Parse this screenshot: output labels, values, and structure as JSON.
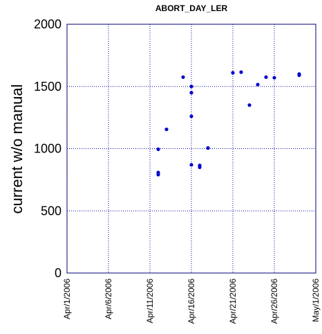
{
  "chart_data": {
    "type": "scatter",
    "title": "ABORT_DAY_LER",
    "y_label": "current w/o manual",
    "color": "#0000cc",
    "grid": true,
    "x": [
      "Apr/12/2006",
      "Apr/12/2006",
      "Apr/12/2006",
      "Apr/13/2006",
      "Apr/15/2006",
      "Apr/16/2006",
      "Apr/16/2006",
      "Apr/16/2006",
      "Apr/16/2006",
      "Apr/17/2006",
      "Apr/17/2006",
      "Apr/18/2006",
      "Apr/21/2006",
      "Apr/22/2006",
      "Apr/23/2006",
      "Apr/24/2006",
      "Apr/25/2006",
      "Apr/26/2006",
      "Apr/29/2006",
      "Apr/29/2006"
    ],
    "values": [
      995,
      808,
      791,
      1155,
      1575,
      1500,
      1450,
      1260,
      870,
      865,
      850,
      1005,
      1610,
      1615,
      1350,
      1515,
      1575,
      1570,
      1600,
      1590
    ],
    "xlim": [
      "Apr/1/2006",
      "May/1/2006"
    ],
    "xticks": [
      "Apr/1/2006",
      "Apr/6/2006",
      "Apr/11/2006",
      "Apr/16/2006",
      "Apr/21/2006",
      "Apr/26/2006",
      "May/1/2006"
    ],
    "ylim": [
      0,
      2000
    ],
    "yticks": [
      0,
      500,
      1000,
      1500,
      2000
    ]
  }
}
